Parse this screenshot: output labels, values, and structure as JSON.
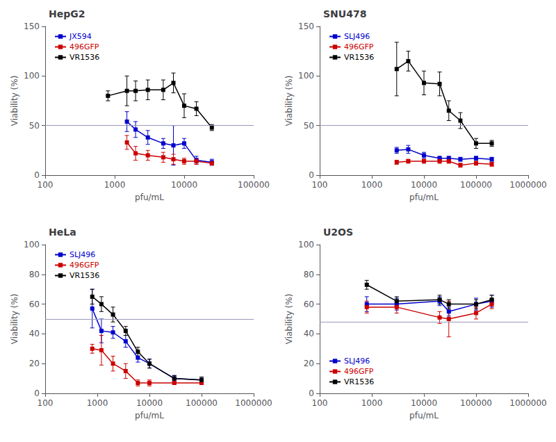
{
  "chart_data": [
    {
      "type": "line",
      "title": "HepG2",
      "xlabel": "pfu/mL",
      "ylabel": "Viability (%)",
      "log": "x",
      "xlim": [
        100,
        100000
      ],
      "xticks": [
        100,
        1000,
        10000,
        100000
      ],
      "ylim": [
        0,
        150
      ],
      "yticks": [
        0,
        50,
        100,
        150
      ],
      "grid": false,
      "legend": "upper left",
      "marker": "square",
      "hline": 50,
      "x": [
        800,
        1500,
        2000,
        3000,
        5000,
        7000,
        10000,
        15000,
        25000
      ],
      "series": [
        {
          "name": "JX594",
          "color": "#0000CC",
          "values": [
            null,
            54,
            46,
            38,
            32,
            30,
            32,
            15,
            13
          ],
          "errors": [
            null,
            10,
            8,
            7,
            5,
            20,
            5,
            4,
            3
          ]
        },
        {
          "name": "496GFP",
          "color": "#CC0000",
          "values": [
            null,
            33,
            22,
            20,
            18,
            16,
            14,
            14,
            12
          ],
          "errors": [
            null,
            7,
            7,
            5,
            5,
            5,
            3,
            3,
            2
          ]
        },
        {
          "name": "VR1536",
          "color": "#000000",
          "values": [
            80,
            85,
            85,
            86,
            86,
            93,
            70,
            67,
            48
          ],
          "errors": [
            5,
            15,
            10,
            10,
            10,
            10,
            12,
            7,
            3
          ]
        }
      ]
    },
    {
      "type": "line",
      "title": "SNU478",
      "xlabel": "pfu/mL",
      "ylabel": "Viability (%)",
      "log": "x",
      "xlim": [
        100,
        1000000
      ],
      "xticks": [
        100,
        1000,
        10000,
        100000,
        1000000
      ],
      "ylim": [
        0,
        150
      ],
      "yticks": [
        0,
        50,
        100,
        150
      ],
      "grid": false,
      "legend": "upper left",
      "marker": "square",
      "hline": 50,
      "x": [
        3000,
        5000,
        10000,
        20000,
        30000,
        50000,
        100000,
        200000
      ],
      "series": [
        {
          "name": "SLJ496",
          "color": "#0000CC",
          "values": [
            25,
            26,
            20,
            17,
            17,
            16,
            17,
            16
          ],
          "errors": [
            3,
            4,
            3,
            2,
            2,
            2,
            2,
            2
          ]
        },
        {
          "name": "496GFP",
          "color": "#CC0000",
          "values": [
            13,
            14,
            14,
            14,
            14,
            10,
            12,
            11
          ],
          "errors": [
            2,
            2,
            2,
            2,
            2,
            2,
            2,
            2
          ]
        },
        {
          "name": "VR1536",
          "color": "#000000",
          "values": [
            107,
            115,
            93,
            92,
            65,
            55,
            32,
            32
          ],
          "errors": [
            27,
            10,
            12,
            12,
            10,
            8,
            5,
            3
          ]
        }
      ]
    },
    {
      "type": "line",
      "title": "HeLa",
      "xlabel": "pfu/mL",
      "ylabel": "Viability (%)",
      "log": "x",
      "xlim": [
        100,
        1000000
      ],
      "xticks": [
        100,
        1000,
        10000,
        100000,
        1000000
      ],
      "ylim": [
        0,
        100
      ],
      "yticks": [
        0,
        20,
        40,
        60,
        80,
        100
      ],
      "grid": false,
      "legend": "upper left",
      "marker": "square",
      "hline": 50,
      "x": [
        800,
        1200,
        2000,
        3500,
        6000,
        10000,
        30000,
        100000
      ],
      "series": [
        {
          "name": "SLJ496",
          "color": "#0000CC",
          "values": [
            57,
            42,
            41,
            35,
            24,
            20,
            10,
            9
          ],
          "errors": [
            13,
            8,
            4,
            4,
            3,
            3,
            2,
            1
          ]
        },
        {
          "name": "496GFP",
          "color": "#CC0000",
          "values": [
            30,
            29,
            20,
            15,
            7,
            7,
            7,
            7
          ],
          "errors": [
            3,
            10,
            5,
            5,
            2,
            2,
            1,
            1
          ]
        },
        {
          "name": "VR1536",
          "color": "#000000",
          "values": [
            65,
            60,
            53,
            42,
            28,
            20,
            10,
            9
          ],
          "errors": [
            5,
            5,
            5,
            3,
            3,
            3,
            2,
            2
          ]
        }
      ]
    },
    {
      "type": "line",
      "title": "U2OS",
      "xlabel": "pfu/mL",
      "ylabel": "Viability (%)",
      "log": "x",
      "xlim": [
        100,
        1000000
      ],
      "xticks": [
        100,
        1000,
        10000,
        100000,
        1000000
      ],
      "ylim": [
        0,
        100
      ],
      "yticks": [
        0,
        20,
        40,
        60,
        80,
        100
      ],
      "grid": false,
      "legend": "lower left",
      "marker": "square",
      "hline": 48,
      "x": [
        800,
        3000,
        20000,
        30000,
        100000,
        200000
      ],
      "series": [
        {
          "name": "SLJ496",
          "color": "#0000CC",
          "values": [
            60,
            60,
            62,
            55,
            60,
            62
          ],
          "errors": [
            5,
            4,
            3,
            3,
            4,
            4
          ]
        },
        {
          "name": "496GFP",
          "color": "#CC0000",
          "values": [
            58,
            58,
            51,
            50,
            54,
            60
          ],
          "errors": [
            4,
            4,
            4,
            12,
            4,
            3
          ]
        },
        {
          "name": "VR1536",
          "color": "#000000",
          "values": [
            73,
            62,
            63,
            60,
            60,
            63
          ],
          "errors": [
            3,
            3,
            3,
            3,
            3,
            3
          ]
        }
      ]
    }
  ]
}
